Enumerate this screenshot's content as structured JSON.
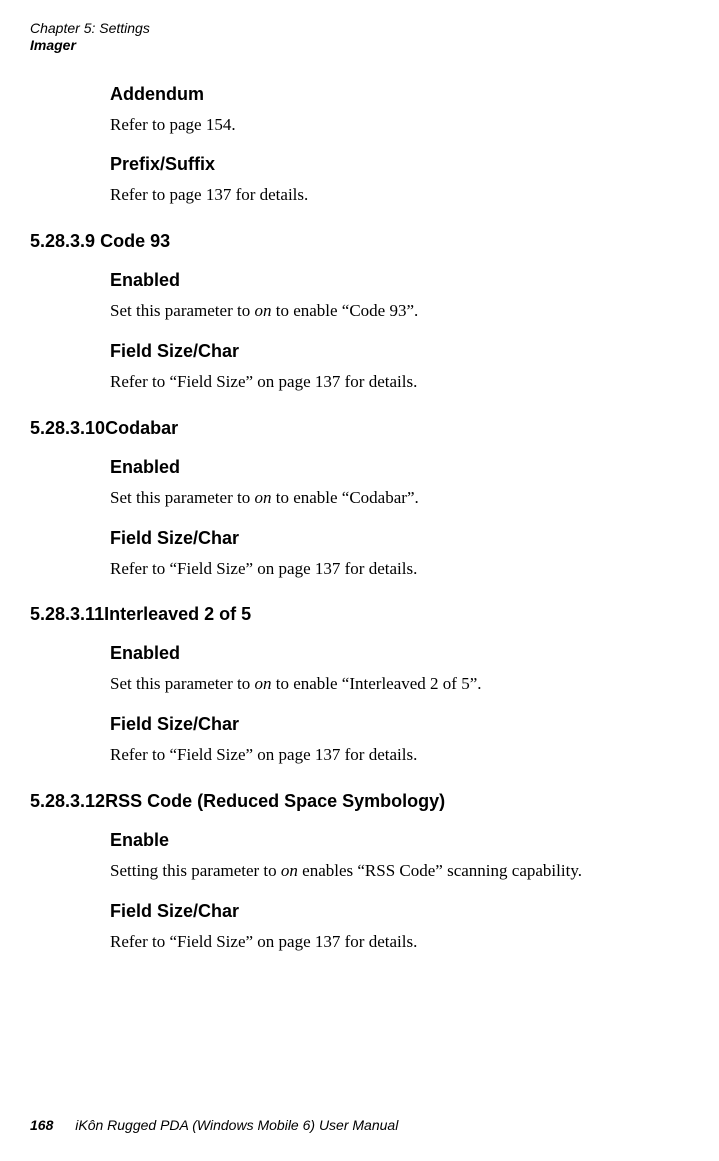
{
  "header": {
    "chapter": "Chapter 5:  Settings",
    "subtitle": "Imager"
  },
  "sections": [
    {
      "heading": "Addendum",
      "body": "Refer to page 154."
    },
    {
      "heading": "Prefix/Suffix",
      "body": "Refer to page 137 for details."
    }
  ],
  "numbered": [
    {
      "number": "5.28.3.9",
      "title": "Code 93",
      "items": [
        {
          "heading": "Enabled",
          "bodyParts": [
            "Set this parameter to ",
            "on",
            " to enable “Code 93”."
          ]
        },
        {
          "heading": "Field Size/Char",
          "body": "Refer to “Field Size” on page 137 for details."
        }
      ]
    },
    {
      "number": "5.28.3.10",
      "title": "Codabar",
      "items": [
        {
          "heading": "Enabled",
          "bodyParts": [
            "Set this parameter to ",
            "on",
            " to enable “Codabar”."
          ]
        },
        {
          "heading": "Field Size/Char",
          "body": "Refer to “Field Size” on page 137 for details."
        }
      ]
    },
    {
      "number": "5.28.3.11",
      "title": "Interleaved 2 of 5",
      "items": [
        {
          "heading": "Enabled",
          "bodyParts": [
            "Set this parameter to ",
            "on",
            " to enable “Interleaved 2 of 5”."
          ]
        },
        {
          "heading": "Field Size/Char",
          "body": "Refer to “Field Size” on page 137 for details."
        }
      ]
    },
    {
      "number": "5.28.3.12",
      "title": "RSS Code (Reduced Space Symbology)",
      "items": [
        {
          "heading": "Enable",
          "bodyParts": [
            "Setting this parameter to ",
            "on",
            " enables “RSS Code” scanning capability."
          ]
        },
        {
          "heading": "Field Size/Char",
          "body": "Refer to “Field Size” on page 137 for details."
        }
      ]
    }
  ],
  "footer": {
    "pageNumber": "168",
    "bookTitle": "iKôn Rugged PDA (Windows Mobile 6) User Manual"
  }
}
